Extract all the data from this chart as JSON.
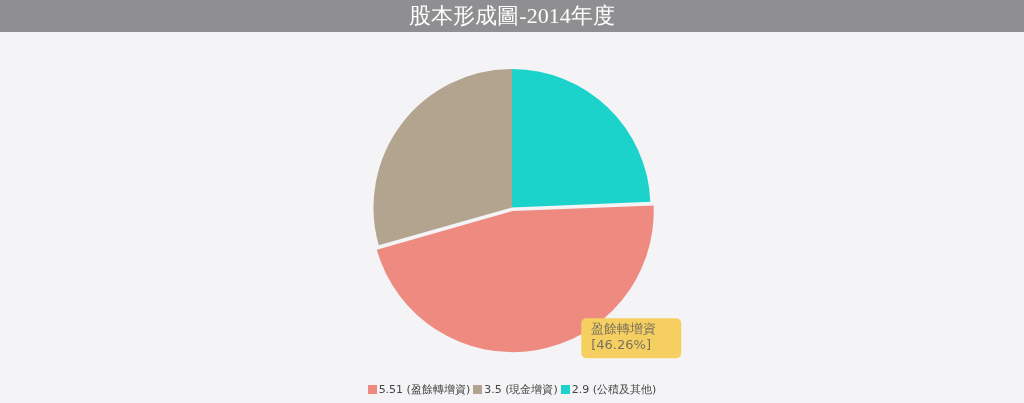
{
  "chart_data": {
    "type": "pie",
    "title": "股本形成圖-2014年度",
    "categories": [
      "5.51 (盈餘轉增資)",
      "3.5 (現金增資)",
      "2.9 (公積及其他)"
    ],
    "values": [
      46.26,
      29.39,
      24.35
    ],
    "colors": [
      "#ee8a80",
      "#b3a48f",
      "#1cd3cc"
    ],
    "legend": "bottom",
    "annotations": [
      "盈餘轉增資\n[46.26%]"
    ]
  }
}
